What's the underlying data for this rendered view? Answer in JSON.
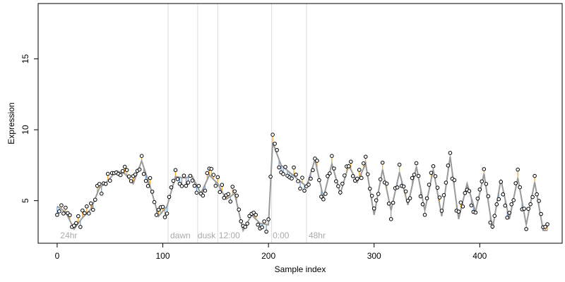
{
  "chart_data": {
    "type": "scatter",
    "title": "",
    "xlabel": "Sample index",
    "ylabel": "Expression",
    "xlim": [
      -18,
      478
    ],
    "ylim": [
      2.0,
      18.9
    ],
    "x_ticks": [
      0,
      100,
      200,
      300,
      400
    ],
    "y_ticks": [
      5,
      10,
      15
    ],
    "grid": false,
    "colors": {
      "fit_line": "#999999",
      "residual_above": "#f5a623",
      "residual_below": "#6c9bd2",
      "point_fill": "#ffffff",
      "point_stroke": "#000000",
      "vline": "#dddddd",
      "annotation": "#aaaaaa"
    },
    "vlines": [
      105,
      133,
      152,
      203,
      236
    ],
    "annotations": [
      {
        "x": 3,
        "text": "24hr"
      },
      {
        "x": 107,
        "text": "dawn"
      },
      {
        "x": 133,
        "text": "dusk"
      },
      {
        "x": 153,
        "text": "12:00"
      },
      {
        "x": 204,
        "text": "0:00"
      },
      {
        "x": 238,
        "text": "48hr"
      }
    ],
    "series": [
      {
        "role": "observed",
        "x": [
          0,
          8,
          16,
          24,
          32,
          40,
          48,
          56,
          64,
          72,
          80,
          88,
          96,
          104,
          112,
          120,
          128,
          136,
          144,
          152,
          160,
          168,
          176,
          184,
          192,
          200,
          204,
          212,
          220,
          228,
          236,
          244,
          252,
          260,
          268,
          276,
          284,
          292,
          300,
          308,
          316,
          324,
          332,
          340,
          348,
          356,
          364,
          372,
          380,
          388,
          396,
          404,
          412,
          420,
          428,
          436,
          444,
          452,
          460
        ],
        "y": [
          4.6,
          4.2,
          3.0,
          3.8,
          4.4,
          5.9,
          6.4,
          7.1,
          6.9,
          6.2,
          7.8,
          6.0,
          3.9,
          4.6,
          6.7,
          6.6,
          6.7,
          5.5,
          6.8,
          6.2,
          5.1,
          5.5,
          2.9,
          4.0,
          3.4,
          3.3,
          9.1,
          7.5,
          7.0,
          6.5,
          6.0,
          7.9,
          5.2,
          7.6,
          5.5,
          7.5,
          6.3,
          7.6,
          4.0,
          7.2,
          4.3,
          7.0,
          4.7,
          7.4,
          4.3,
          7.2,
          3.9,
          8.1,
          3.7,
          6.2,
          4.2,
          6.9,
          3.0,
          6.5,
          3.7,
          6.6,
          3.3,
          6.3,
          2.9
        ]
      }
    ]
  }
}
